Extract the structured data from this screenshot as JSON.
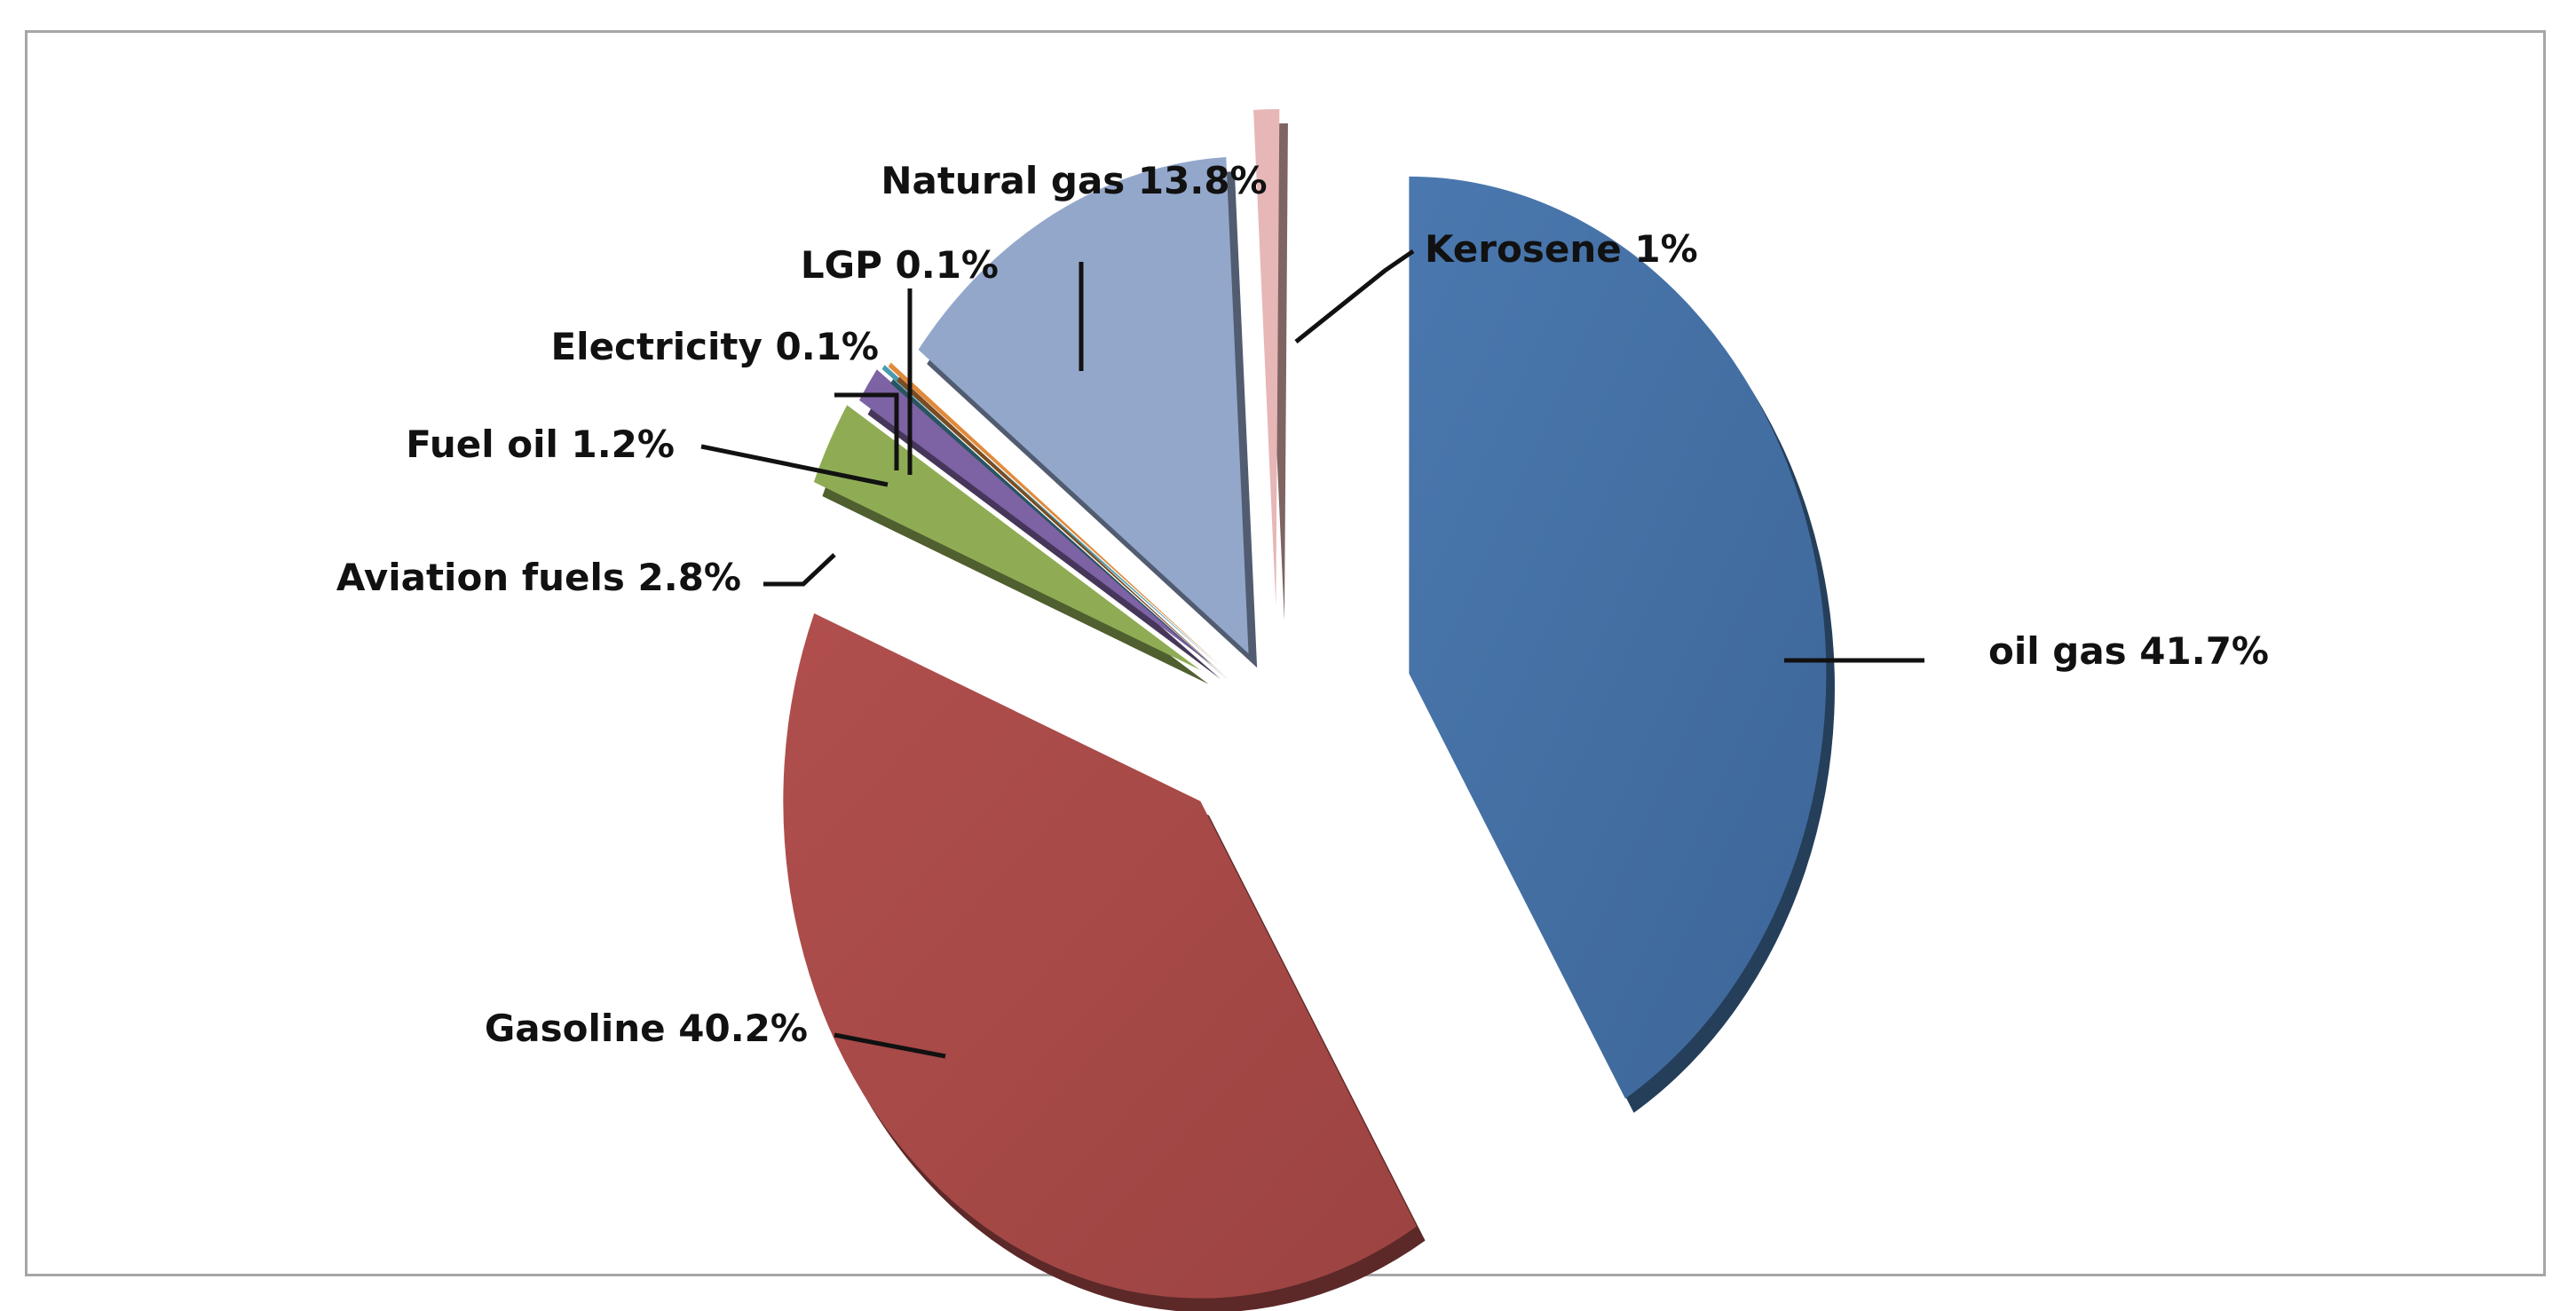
{
  "chart_data": {
    "type": "pie",
    "title": "",
    "exploded": true,
    "three_d": true,
    "slices": [
      {
        "name": "oil gas",
        "value": 41.7,
        "label": "oil gas 41.7%",
        "color": "#4470a4"
      },
      {
        "name": "Gasoline",
        "value": 40.2,
        "label": "Gasoline 40.2%",
        "color": "#a84a48"
      },
      {
        "name": "Aviation fuels",
        "value": 2.8,
        "label": "Aviation fuels 2.8%",
        "color": "#8fac55"
      },
      {
        "name": "Fuel oil",
        "value": 1.2,
        "label": "Fuel oil 1.2%",
        "color": "#7d63a3"
      },
      {
        "name": "Electricity",
        "value": 0.1,
        "label": "Electricity 0.1%",
        "color": "#4a9bb0"
      },
      {
        "name": "LGP",
        "value": 0.1,
        "label": "LGP 0.1%",
        "color": "#e08a3c"
      },
      {
        "name": "Natural gas",
        "value": 13.8,
        "label": "Natural gas 13.8%",
        "color": "#93a7cb"
      },
      {
        "name": "Kerosene",
        "value": 1,
        "label": "Kerosene 1%",
        "color": "#e7b6b6"
      }
    ]
  }
}
